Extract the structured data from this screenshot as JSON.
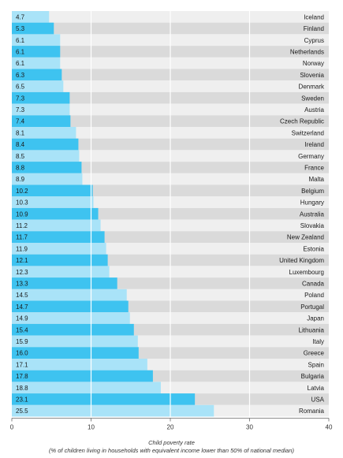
{
  "chart_data": {
    "type": "bar",
    "orientation": "horizontal",
    "categories": [
      "Iceland",
      "Finland",
      "Cyprus",
      "Netherlands",
      "Norway",
      "Slovenia",
      "Denmark",
      "Sweden",
      "Austria",
      "Czech Republic",
      "Switzerland",
      "Ireland",
      "Germany",
      "France",
      "Malta",
      "Belgium",
      "Hungary",
      "Australia",
      "Slovakia",
      "New Zealand",
      "Estonia",
      "United Kingdom",
      "Luxembourg",
      "Canada",
      "Poland",
      "Portugal",
      "Japan",
      "Lithuania",
      "Italy",
      "Greece",
      "Spain",
      "Bulgaria",
      "Latvia",
      "USA",
      "Romania"
    ],
    "values": [
      4.7,
      5.3,
      6.1,
      6.1,
      6.1,
      6.3,
      6.5,
      7.3,
      7.3,
      7.4,
      8.1,
      8.4,
      8.5,
      8.8,
      8.9,
      10.2,
      10.3,
      10.9,
      11.2,
      11.7,
      11.9,
      12.1,
      12.3,
      13.3,
      14.5,
      14.7,
      14.9,
      15.4,
      15.9,
      16.0,
      17.1,
      17.8,
      18.8,
      23.1,
      25.5
    ],
    "value_labels": [
      "4.7",
      "5.3",
      "6.1",
      "6.1",
      "6.1",
      "6.3",
      "6.5",
      "7.3",
      "7.3",
      "7.4",
      "8.1",
      "8.4",
      "8.5",
      "8.8",
      "8.9",
      "10.2",
      "10.3",
      "10.9",
      "11.2",
      "11.7",
      "11.9",
      "12.1",
      "12.3",
      "13.3",
      "14.5",
      "14.7",
      "14.9",
      "15.4",
      "15.9",
      "16.0",
      "17.1",
      "17.8",
      "18.8",
      "23.1",
      "25.5"
    ],
    "xlim": [
      0,
      40
    ],
    "xticks": [
      "0",
      "10",
      "20",
      "30",
      "40"
    ],
    "xlabel_line1": "Child poverty rate",
    "xlabel_line2": "(% of children living in households with equivalent income lower than 50% of national median)",
    "grid": true,
    "colors": {
      "bar_dark": "#3ec3f0",
      "bar_light": "#a9e3f8",
      "track_dark": "#dadada",
      "track_light": "#efefef",
      "gridline": "#ffffff"
    }
  }
}
